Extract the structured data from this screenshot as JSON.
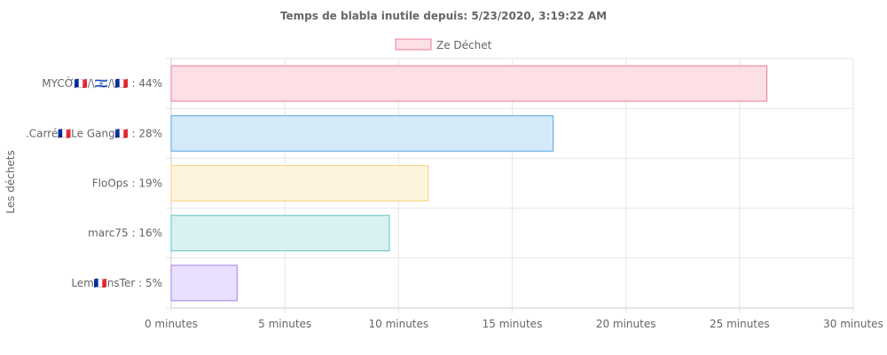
{
  "chart_data": {
    "type": "bar",
    "orientation": "horizontal",
    "title": "Temps de blabla inutile depuis: 5/23/2020, 3:19:22 AM",
    "legend": {
      "position": "top",
      "label": "Ze Déchet"
    },
    "ylabel": "Les déchets",
    "xlabel": "",
    "xlim": [
      0,
      30
    ],
    "x_ticks": [
      0,
      5,
      10,
      15,
      20,
      25,
      30
    ],
    "x_tick_suffix": " minutes",
    "grid": true,
    "categories": [
      "MYCỜ🇫🇷/\\🇮🇱/\\🇫🇷 : 44%",
      ".Carré🇫🇷Le Gang🇫🇷 : 28%",
      "FloOps : 19%",
      "marc75 : 16%",
      "Lem🇫🇷nsTer : 5%"
    ],
    "series": [
      {
        "name": "Ze Déchet",
        "values": [
          26.2,
          16.8,
          11.3,
          9.6,
          2.9
        ]
      }
    ],
    "colors": {
      "fills": [
        "#fddfe6",
        "#d5eaf9",
        "#fef3dc",
        "#d9f1f1",
        "#e8e0fe"
      ],
      "borders": [
        "#f07b95",
        "#4ea5e3",
        "#f9d280",
        "#5fc4c4",
        "#a07ef3"
      ],
      "legend_fill": "#fddfe6",
      "legend_border": "#f07b95"
    }
  }
}
